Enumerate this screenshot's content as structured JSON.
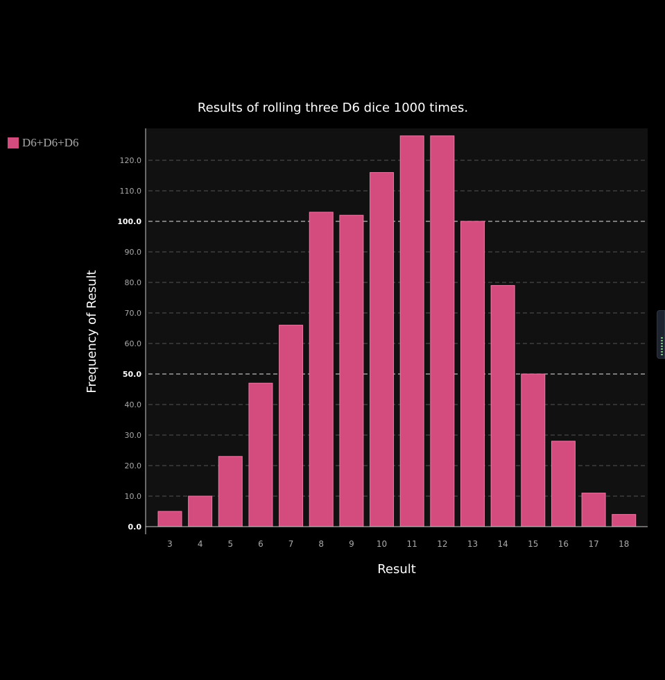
{
  "chart_data": {
    "type": "bar",
    "title": "Results of rolling three D6 dice 1000 times.",
    "xlabel": "Result",
    "ylabel": "Frequency of Result",
    "categories": [
      "3",
      "4",
      "5",
      "6",
      "7",
      "8",
      "9",
      "10",
      "11",
      "12",
      "13",
      "14",
      "15",
      "16",
      "17",
      "18"
    ],
    "series": [
      {
        "name": "D6+D6+D6",
        "values": [
          5,
          10,
          23,
          47,
          66,
          103,
          102,
          116,
          128,
          128,
          100,
          79,
          50,
          28,
          11,
          4
        ],
        "color": "#d44c7e"
      }
    ],
    "ylim": [
      0,
      130
    ],
    "yticks": [
      "0.0",
      "10.0",
      "20.0",
      "30.0",
      "40.0",
      "50.0",
      "60.0",
      "70.0",
      "80.0",
      "90.0",
      "100.0",
      "110.0",
      "120.0"
    ],
    "major_yticks": [
      "0.0",
      "50.0",
      "100.0"
    ],
    "grid": "horizontal dashed",
    "legend_position": "top-left",
    "colors": {
      "background": "#000000",
      "plot_background": "#111111",
      "bar": "#d44c7e",
      "bar_border": "#ea7aa3",
      "grid": "#555555",
      "axis": "#cccccc",
      "text": "#ffffff",
      "tick_text": "#aaaaaa"
    }
  }
}
